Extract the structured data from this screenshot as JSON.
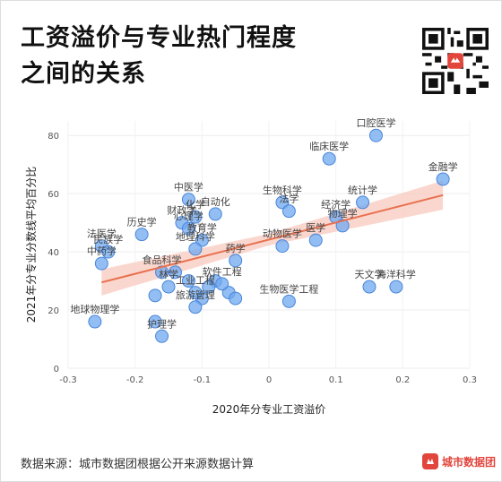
{
  "title_line1": "工资溢价与专业热门程度",
  "title_line2": "之间的关系",
  "footer": "数据来源：城市数据团根据公开来源数据计算",
  "logo_text": "城市数据团",
  "colors": {
    "point_fill": "#6fa8f0",
    "point_stroke": "#4a86d9",
    "trend_line": "#e8704f",
    "band": "#f8c9bd",
    "brand": "#e2453c"
  },
  "chart_data": {
    "type": "scatter",
    "xlabel": "2020年分专业工资溢价",
    "ylabel": "2021年分专业分数线平均百分比",
    "xlim": [
      -0.3,
      0.3
    ],
    "ylim": [
      0,
      85
    ],
    "xticks": [
      "-0.3",
      "-0.2",
      "-0.1",
      "0",
      "0.1",
      "0.2",
      "0.3"
    ],
    "xtick_values": [
      -0.3,
      -0.2,
      -0.1,
      0,
      0.1,
      0.2,
      0.3
    ],
    "yticks": [
      "0",
      "20",
      "40",
      "60",
      "80"
    ],
    "ytick_values": [
      0,
      20,
      40,
      60,
      80
    ],
    "trend": {
      "x": [
        -0.25,
        0.26
      ],
      "y": [
        29.5,
        59.5
      ]
    },
    "band_halfwidth": {
      "x": [
        -0.25,
        0.0,
        0.26
      ],
      "hw": [
        4.5,
        2.0,
        5.0
      ]
    },
    "points": [
      {
        "label": "口腔医学",
        "x": 0.16,
        "y": 80
      },
      {
        "label": "临床医学",
        "x": 0.09,
        "y": 72
      },
      {
        "label": "金融学",
        "x": 0.26,
        "y": 65
      },
      {
        "label": "统计学",
        "x": 0.14,
        "y": 57
      },
      {
        "label": "中医学",
        "x": -0.12,
        "y": 58
      },
      {
        "label": "自动化",
        "x": -0.08,
        "y": 53
      },
      {
        "label": "生物科学",
        "x": 0.02,
        "y": 57
      },
      {
        "label": "经济学",
        "x": 0.1,
        "y": 52
      },
      {
        "label": "法学",
        "x": 0.03,
        "y": 54
      },
      {
        "label": "财政学",
        "x": -0.13,
        "y": 50
      },
      {
        "label": "化学",
        "x": -0.11,
        "y": 52
      },
      {
        "label": "心理学",
        "x": -0.12,
        "y": 48
      },
      {
        "label": "物理学",
        "x": 0.11,
        "y": 49
      },
      {
        "label": "历史学",
        "x": -0.19,
        "y": 46
      },
      {
        "label": "法医学",
        "x": -0.25,
        "y": 42
      },
      {
        "label": "民族学",
        "x": -0.24,
        "y": 40
      },
      {
        "label": "中药学",
        "x": -0.25,
        "y": 36
      },
      {
        "label": "教育学",
        "x": -0.1,
        "y": 44
      },
      {
        "label": "动物医学",
        "x": 0.02,
        "y": 42
      },
      {
        "label": "医学",
        "x": 0.07,
        "y": 44
      },
      {
        "label": "药学",
        "x": -0.05,
        "y": 37
      },
      {
        "label": "地理科学",
        "x": -0.11,
        "y": 41
      },
      {
        "label": "食品科学",
        "x": -0.16,
        "y": 33
      },
      {
        "label": "林学",
        "x": -0.15,
        "y": 28
      },
      {
        "label": "工业工程",
        "x": -0.11,
        "y": 26
      },
      {
        "label": "软件工程",
        "x": -0.07,
        "y": 29
      },
      {
        "label": "天文学",
        "x": 0.15,
        "y": 28
      },
      {
        "label": "海洋科学",
        "x": 0.19,
        "y": 28
      },
      {
        "label": "生物医学工程",
        "x": 0.03,
        "y": 23
      },
      {
        "label": "旅游管理",
        "x": -0.11,
        "y": 21
      },
      {
        "label": "护理学",
        "x": -0.16,
        "y": 11
      },
      {
        "label": "地球物理学",
        "x": -0.26,
        "y": 16
      }
    ],
    "unlabeled_points": [
      {
        "x": -0.17,
        "y": 16
      },
      {
        "x": -0.17,
        "y": 25
      },
      {
        "x": -0.14,
        "y": 33
      },
      {
        "x": -0.1,
        "y": 24
      },
      {
        "x": -0.06,
        "y": 26
      },
      {
        "x": -0.08,
        "y": 30
      },
      {
        "x": -0.09,
        "y": 28
      },
      {
        "x": -0.05,
        "y": 24
      },
      {
        "x": -0.12,
        "y": 30
      }
    ]
  },
  "label_text": [
    "口腔医学",
    "临床医学",
    "金融学",
    "统计学",
    "中医学",
    "自动化",
    "生物科学",
    "经济学",
    "法学",
    "财政学",
    "化学",
    "心理学",
    "物理学",
    "历史学",
    "法医学",
    "民族学",
    "中药学",
    "教育学",
    "动物医学",
    "医学",
    "药学",
    "地理科学",
    "食品科学",
    "林学",
    "工业工程",
    "软件工程",
    "天文学",
    "海洋科学",
    "生物医学工程",
    "旅游管理",
    "护理学",
    "地球物理学"
  ]
}
